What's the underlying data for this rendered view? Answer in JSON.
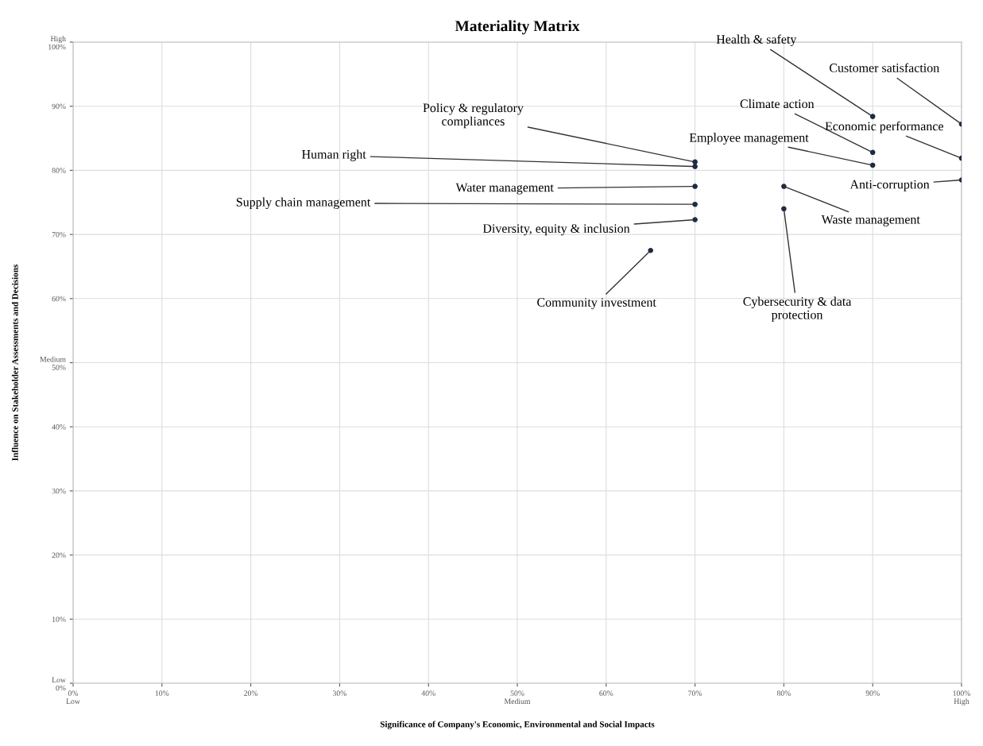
{
  "chart_data": {
    "type": "scatter",
    "title": "Materiality Matrix",
    "xlabel": "Significance of Company's Economic, Environmental and Social Impacts",
    "ylabel": "Influence on Stakeholder Assessments and Decisions",
    "series": [
      {
        "color": "#1f2a44",
        "x": [
          90,
          100,
          90,
          100,
          90,
          70,
          70,
          100,
          70,
          80,
          70,
          80,
          70,
          65
        ],
        "values": [
          88.4,
          87.2,
          82.8,
          81.9,
          80.8,
          81.3,
          80.6,
          78.5,
          77.5,
          77.5,
          74.7,
          74.0,
          72.3,
          67.5
        ]
      }
    ],
    "marker": "circle",
    "xlim": [
      0,
      100
    ],
    "ylim": [
      0,
      100
    ],
    "xticks": [
      {
        "value": 0,
        "label": "0%\nLow"
      },
      {
        "value": 10,
        "label": "10%"
      },
      {
        "value": 20,
        "label": "20%"
      },
      {
        "value": 30,
        "label": "30%"
      },
      {
        "value": 40,
        "label": "40%"
      },
      {
        "value": 50,
        "label": "50%\nMedium"
      },
      {
        "value": 60,
        "label": "60%"
      },
      {
        "value": 70,
        "label": "70%"
      },
      {
        "value": 80,
        "label": "80%"
      },
      {
        "value": 90,
        "label": "90%"
      },
      {
        "value": 100,
        "label": "100%\nHigh"
      }
    ],
    "yticks": [
      {
        "value": 0,
        "label": "Low\n0%"
      },
      {
        "value": 10,
        "label": "10%"
      },
      {
        "value": 20,
        "label": "20%"
      },
      {
        "value": 30,
        "label": "30%"
      },
      {
        "value": 40,
        "label": "40%"
      },
      {
        "value": 50,
        "label": "Medium\n50%"
      },
      {
        "value": 60,
        "label": "60%"
      },
      {
        "value": 70,
        "label": "70%"
      },
      {
        "value": 80,
        "label": "80%"
      },
      {
        "value": 90,
        "label": "90%"
      },
      {
        "value": 100,
        "label": "High\n100%"
      }
    ],
    "grid": true,
    "annotations": [
      {
        "text": "Health & safety",
        "x": 90,
        "y": 88.4
      },
      {
        "text": "Customer satisfaction",
        "x": 100,
        "y": 87.2
      },
      {
        "text": "Climate action",
        "x": 90,
        "y": 82.8
      },
      {
        "text": "Economic performance",
        "x": 100,
        "y": 81.9
      },
      {
        "text": "Employee management",
        "x": 90,
        "y": 80.8
      },
      {
        "text": "Policy & regulatory\ncompliances",
        "x": 70,
        "y": 81.3
      },
      {
        "text": "Human right",
        "x": 70,
        "y": 80.6
      },
      {
        "text": "Anti-corruption",
        "x": 100,
        "y": 78.5
      },
      {
        "text": "Water management",
        "x": 70,
        "y": 77.5
      },
      {
        "text": "Waste management",
        "x": 80,
        "y": 77.5
      },
      {
        "text": "Supply chain management",
        "x": 70,
        "y": 74.7
      },
      {
        "text": "Cybersecurity & data\nprotection",
        "x": 80,
        "y": 74.0
      },
      {
        "text": "Diversity, equity & inclusion",
        "x": 70,
        "y": 72.3
      },
      {
        "text": "Community investment",
        "x": 65,
        "y": 67.5
      }
    ]
  }
}
